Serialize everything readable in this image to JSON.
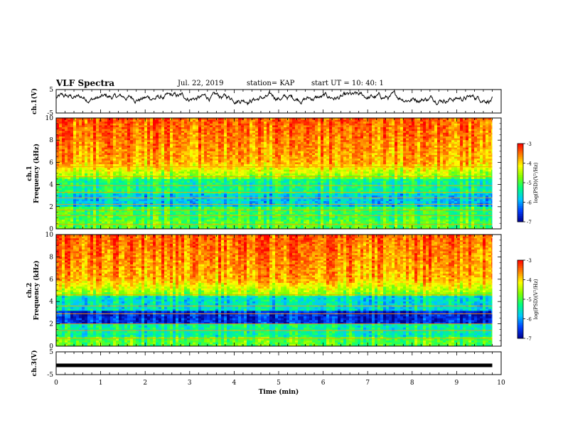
{
  "header": {
    "title": "VLF Spectra",
    "date": "Jul. 22, 2019",
    "station": "station= KAP",
    "start": "start UT =  10: 40: 1"
  },
  "chart_data": {
    "type": "heatmap",
    "x_axis": {
      "label": "Time (min)",
      "range": [
        0,
        10
      ],
      "ticks": [
        "0",
        "1",
        "2",
        "3",
        "4",
        "5",
        "6",
        "7",
        "8",
        "9",
        "10"
      ]
    },
    "panels": [
      {
        "kind": "waveform",
        "ylabel": "ch.1(V)",
        "ylim": [
          -5,
          5
        ],
        "yticks": [
          "5",
          "-5"
        ],
        "trace_extent_min": 9.8,
        "trace_range": [
          -1.5,
          4.5
        ]
      },
      {
        "kind": "spectrogram",
        "ylabel_1": "ch.1",
        "ylabel_2": "Frequency (kHz)",
        "ylim": [
          0,
          10
        ],
        "yticks": [
          "0",
          "2",
          "4",
          "6",
          "8",
          "10"
        ],
        "data_extent_min": 9.8,
        "bands_khz": [
          0.4,
          1.2,
          1.7,
          2.2,
          2.8,
          3.3,
          3.9,
          4.7,
          5.6
        ]
      },
      {
        "kind": "spectrogram",
        "ylabel_1": "ch.2",
        "ylabel_2": "Frequency (kHz)",
        "ylim": [
          0,
          10
        ],
        "yticks": [
          "0",
          "2",
          "4",
          "6",
          "8",
          "10"
        ],
        "data_extent_min": 9.8,
        "bands_khz": [
          0.7,
          1.4,
          2.0,
          2.9,
          3.6,
          4.6
        ]
      },
      {
        "kind": "waveform",
        "ylabel": "ch.3(V)",
        "ylim": [
          -5,
          5
        ],
        "yticks": [
          "5",
          "-5"
        ],
        "flat_value": 0,
        "trace_extent_min": 9.8
      }
    ],
    "colorbar": {
      "label": "log(PSD)(V²/Hz)",
      "range": [
        -7,
        -3
      ],
      "ticks": [
        "-3",
        "-4",
        "-5",
        "-6",
        "-7"
      ],
      "colors": [
        "#000090",
        "#0040ff",
        "#00c8ff",
        "#00ff80",
        "#80ff00",
        "#ffff00",
        "#ff8000",
        "#ff0000",
        "#ffffff"
      ]
    }
  }
}
